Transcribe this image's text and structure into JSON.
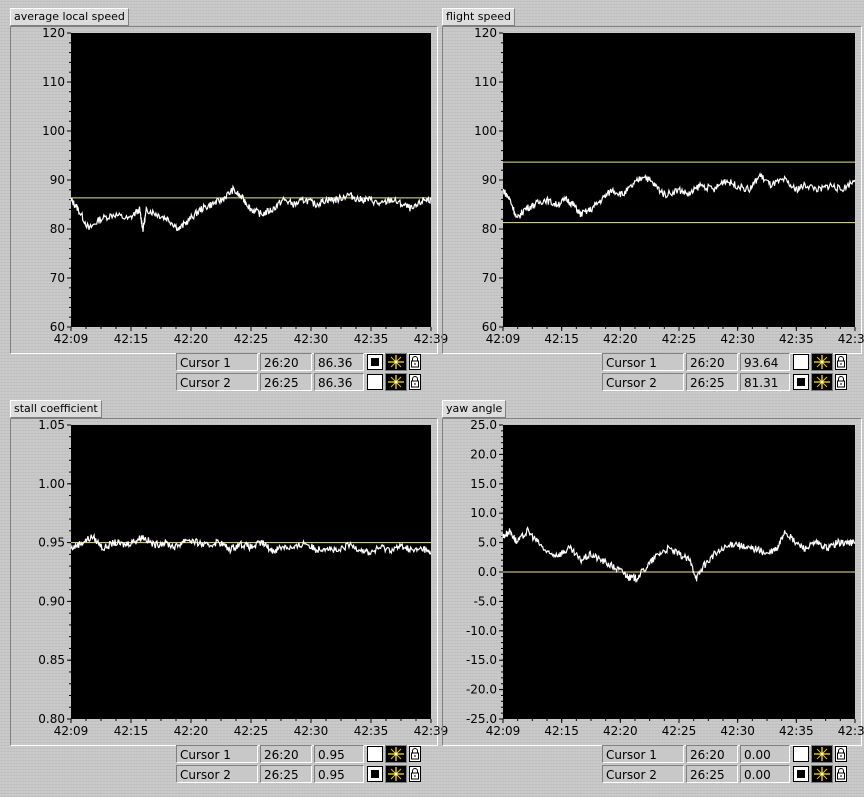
{
  "colors": {
    "plot_bg": "#000000",
    "trace": "#ffffff",
    "cursor_line": "#e8e88a"
  },
  "panels": [
    {
      "id": "average-local-speed",
      "title": "average local speed",
      "cursors": [
        {
          "name": "Cursor 1",
          "x": "26:20",
          "y": "86.36",
          "square": "filled"
        },
        {
          "name": "Cursor 2",
          "x": "26:25",
          "y": "86.36",
          "square": "empty"
        }
      ]
    },
    {
      "id": "flight-speed",
      "title": "flight speed",
      "cursors": [
        {
          "name": "Cursor 1",
          "x": "26:20",
          "y": "93.64",
          "square": "empty"
        },
        {
          "name": "Cursor 2",
          "x": "26:25",
          "y": "81.31",
          "square": "filled"
        }
      ]
    },
    {
      "id": "stall-coefficient",
      "title": "stall coefficient",
      "cursors": [
        {
          "name": "Cursor 1",
          "x": "26:20",
          "y": "0.95",
          "square": "empty"
        },
        {
          "name": "Cursor 2",
          "x": "26:25",
          "y": "0.95",
          "square": "filled"
        }
      ]
    },
    {
      "id": "yaw-angle",
      "title": "yaw angle",
      "cursors": [
        {
          "name": "Cursor 1",
          "x": "26:20",
          "y": "0.00",
          "square": "empty"
        },
        {
          "name": "Cursor 2",
          "x": "26:25",
          "y": "0.00",
          "square": "filled"
        }
      ]
    }
  ],
  "chart_data": [
    {
      "type": "line",
      "title": "average local speed",
      "x_ticks": [
        "42:09",
        "42:15",
        "42:20",
        "42:25",
        "42:30",
        "42:35",
        "42:39"
      ],
      "y_ticks": [
        "60",
        "70",
        "80",
        "90",
        "100",
        "110",
        "120"
      ],
      "ylim": [
        60,
        120
      ],
      "cursor_lines": [
        86.36
      ],
      "series": [
        {
          "x": [
            0,
            0.02,
            0.05,
            0.08,
            0.12,
            0.16,
            0.19,
            0.2,
            0.21,
            0.24,
            0.27,
            0.3,
            0.33,
            0.36,
            0.39,
            0.42,
            0.45,
            0.48,
            0.5,
            0.53,
            0.56,
            0.59,
            0.62,
            0.65,
            0.68,
            0.71,
            0.74,
            0.77,
            0.8,
            0.83,
            0.86,
            0.89,
            0.92,
            0.95,
            0.98,
            1.0
          ],
          "y": [
            86,
            84,
            80,
            82,
            83,
            82,
            84,
            80,
            84,
            83,
            82,
            80,
            82,
            84,
            85,
            86,
            88,
            86,
            84,
            83,
            84,
            86,
            85,
            86,
            85,
            86,
            86,
            87,
            86,
            86,
            85,
            86,
            85,
            84,
            86,
            86
          ]
        }
      ]
    },
    {
      "type": "line",
      "title": "flight speed",
      "x_ticks": [
        "42:09",
        "42:15",
        "42:20",
        "42:25",
        "42:30",
        "42:35",
        "42:39"
      ],
      "y_ticks": [
        "60",
        "70",
        "80",
        "90",
        "100",
        "110",
        "120"
      ],
      "ylim": [
        60,
        120
      ],
      "cursor_lines": [
        93.64,
        81.31
      ],
      "series": [
        {
          "x": [
            0,
            0.02,
            0.04,
            0.06,
            0.09,
            0.12,
            0.15,
            0.18,
            0.2,
            0.22,
            0.25,
            0.28,
            0.31,
            0.34,
            0.37,
            0.4,
            0.43,
            0.46,
            0.5,
            0.53,
            0.56,
            0.6,
            0.63,
            0.66,
            0.7,
            0.73,
            0.76,
            0.8,
            0.83,
            0.86,
            0.9,
            0.93,
            0.96,
            1.0
          ],
          "y": [
            88,
            86,
            82,
            84,
            85,
            86,
            85,
            86,
            85,
            83,
            84,
            86,
            88,
            87,
            89,
            91,
            89,
            87,
            88,
            87,
            89,
            88,
            90,
            89,
            88,
            91,
            89,
            90,
            88,
            89,
            88,
            89,
            88,
            90
          ]
        }
      ]
    },
    {
      "type": "line",
      "title": "stall coefficient",
      "x_ticks": [
        "42:09",
        "42:15",
        "42:20",
        "42:25",
        "42:30",
        "42:35",
        "42:39"
      ],
      "y_ticks": [
        "0.80",
        "0.85",
        "0.90",
        "0.95",
        "1.00",
        "1.05"
      ],
      "ylim": [
        0.8,
        1.05
      ],
      "cursor_lines": [
        0.95
      ],
      "series": [
        {
          "x": [
            0,
            0.03,
            0.06,
            0.09,
            0.12,
            0.15,
            0.18,
            0.2,
            0.23,
            0.26,
            0.29,
            0.32,
            0.35,
            0.38,
            0.41,
            0.44,
            0.47,
            0.5,
            0.53,
            0.56,
            0.59,
            0.62,
            0.65,
            0.68,
            0.71,
            0.74,
            0.77,
            0.8,
            0.83,
            0.86,
            0.89,
            0.92,
            0.95,
            0.98,
            1.0
          ],
          "y": [
            0.945,
            0.95,
            0.955,
            0.945,
            0.95,
            0.948,
            0.952,
            0.955,
            0.948,
            0.95,
            0.946,
            0.953,
            0.95,
            0.947,
            0.951,
            0.944,
            0.949,
            0.946,
            0.95,
            0.943,
            0.947,
            0.945,
            0.95,
            0.944,
            0.946,
            0.942,
            0.948,
            0.945,
            0.941,
            0.946,
            0.944,
            0.947,
            0.943,
            0.945,
            0.94
          ]
        }
      ]
    },
    {
      "type": "line",
      "title": "yaw angle",
      "x_ticks": [
        "42:09",
        "42:15",
        "42:20",
        "42:25",
        "42:30",
        "42:35",
        "42:39"
      ],
      "y_ticks": [
        "25.0",
        "20.0",
        "15.0",
        "10.0",
        "5.0",
        "0.0",
        "-5.0",
        "-10.0",
        "-15.0",
        "-20.0",
        "-25.0"
      ],
      "ylim": [
        -25,
        25
      ],
      "cursor_lines": [
        0.0
      ],
      "series": [
        {
          "x": [
            0,
            0.02,
            0.04,
            0.07,
            0.1,
            0.13,
            0.16,
            0.19,
            0.22,
            0.25,
            0.28,
            0.31,
            0.34,
            0.36,
            0.38,
            0.41,
            0.44,
            0.47,
            0.5,
            0.53,
            0.55,
            0.57,
            0.6,
            0.63,
            0.66,
            0.69,
            0.72,
            0.75,
            0.78,
            0.8,
            0.83,
            0.86,
            0.89,
            0.92,
            0.95,
            0.98,
            1.0
          ],
          "y": [
            6,
            7,
            5,
            7,
            5,
            3,
            3,
            4,
            2,
            3,
            2,
            1,
            0,
            -1,
            -1,
            1,
            3,
            4,
            3,
            2,
            -1,
            1,
            3,
            4,
            5,
            4,
            4,
            3,
            4,
            7,
            5,
            4,
            5,
            4,
            5,
            5,
            5
          ]
        }
      ]
    }
  ]
}
